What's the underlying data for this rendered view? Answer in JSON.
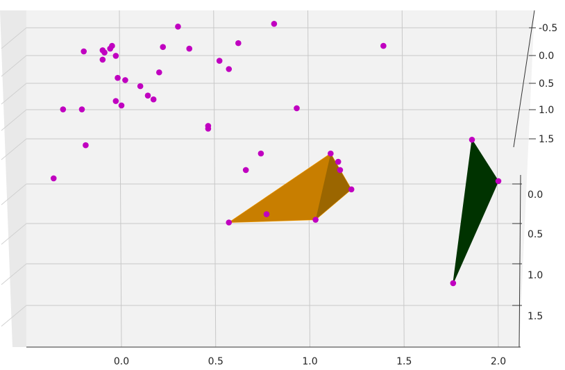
{
  "chart_data": {
    "type": "scatter",
    "projection": "3d",
    "title": "",
    "xlabel": "",
    "ylabel": "",
    "zlabel": "",
    "grid": true,
    "x_ticks": [
      "0.0",
      "0.5",
      "1.0",
      "1.5",
      "2.0"
    ],
    "y_ticks": [
      "-0.5",
      "0.0",
      "0.5",
      "1.0",
      "1.5"
    ],
    "z_ticks": [
      "0.0",
      "0.5",
      "1.0",
      "1.5"
    ],
    "points_color": "#c000c0",
    "points": [
      {
        "x": 0.3,
        "y": -0.55,
        "z": 0.0
      },
      {
        "x": 0.81,
        "y": -0.6,
        "z": 0.0
      },
      {
        "x": 0.62,
        "y": -0.25,
        "z": 0.0
      },
      {
        "x": 1.39,
        "y": -0.2,
        "z": 0.0
      },
      {
        "x": 0.22,
        "y": -0.18,
        "z": 0.0
      },
      {
        "x": 0.36,
        "y": -0.15,
        "z": 0.0
      },
      {
        "x": -0.05,
        "y": -0.2,
        "z": 0.0
      },
      {
        "x": -0.06,
        "y": -0.15,
        "z": 0.0
      },
      {
        "x": -0.1,
        "y": -0.12,
        "z": 0.0
      },
      {
        "x": -0.09,
        "y": -0.08,
        "z": 0.0
      },
      {
        "x": -0.2,
        "y": -0.1,
        "z": 0.0
      },
      {
        "x": -0.03,
        "y": -0.02,
        "z": 0.0
      },
      {
        "x": -0.1,
        "y": 0.05,
        "z": 0.0
      },
      {
        "x": 0.52,
        "y": 0.07,
        "z": 0.0
      },
      {
        "x": 0.57,
        "y": 0.22,
        "z": 0.0
      },
      {
        "x": 0.2,
        "y": 0.28,
        "z": 0.0
      },
      {
        "x": -0.02,
        "y": 0.38,
        "z": 0.0
      },
      {
        "x": 0.02,
        "y": 0.42,
        "z": 0.0
      },
      {
        "x": 0.1,
        "y": 0.53,
        "z": 0.0
      },
      {
        "x": 0.14,
        "y": 0.7,
        "z": 0.0
      },
      {
        "x": 0.17,
        "y": 0.77,
        "z": 0.0
      },
      {
        "x": -0.03,
        "y": 0.8,
        "z": 0.0
      },
      {
        "x": 0.0,
        "y": 0.88,
        "z": 0.0
      },
      {
        "x": -0.31,
        "y": 0.95,
        "z": 0.0
      },
      {
        "x": -0.21,
        "y": 0.95,
        "z": 0.0
      },
      {
        "x": 0.93,
        "y": 0.93,
        "z": 0.0
      },
      {
        "x": 0.46,
        "y": 1.25,
        "z": 0.0
      },
      {
        "x": 0.46,
        "y": 1.3,
        "z": 0.0
      },
      {
        "x": -0.19,
        "y": 1.6,
        "z": 0.0
      },
      {
        "x": 0.74,
        "y": 1.75,
        "z": 0.0
      },
      {
        "x": 0.66,
        "y": 2.05,
        "z": 0.0
      },
      {
        "x": -0.36,
        "y": 2.2,
        "z": 0.0
      },
      {
        "x": 1.11,
        "y": 1.75,
        "z": 0.0
      },
      {
        "x": 1.15,
        "y": 1.9,
        "z": 0.0
      },
      {
        "x": 1.16,
        "y": 2.05,
        "z": 0.0
      },
      {
        "x": 1.22,
        "y": 2.4,
        "z": 0.0
      },
      {
        "x": 0.57,
        "y": 3.0,
        "z": 0.0
      },
      {
        "x": 0.77,
        "y": 2.85,
        "z": 0.0
      },
      {
        "x": 1.03,
        "y": 2.95,
        "z": 0.0
      },
      {
        "x": 1.86,
        "y": 1.5,
        "z": 0.0
      },
      {
        "x": 2.0,
        "y": 2.25,
        "z": 0.0
      },
      {
        "x": 1.76,
        "y": 4.1,
        "z": 0.0
      }
    ],
    "surfaces": [
      {
        "color": "#ffa500",
        "vertices": [
          [
            0.57,
            3.0
          ],
          [
            1.11,
            1.75
          ],
          [
            1.22,
            2.4
          ],
          [
            1.03,
            2.95
          ]
        ]
      },
      {
        "color": "#003300",
        "vertices": [
          [
            1.86,
            1.5
          ],
          [
            2.0,
            2.25
          ],
          [
            1.76,
            4.1
          ]
        ]
      }
    ]
  }
}
